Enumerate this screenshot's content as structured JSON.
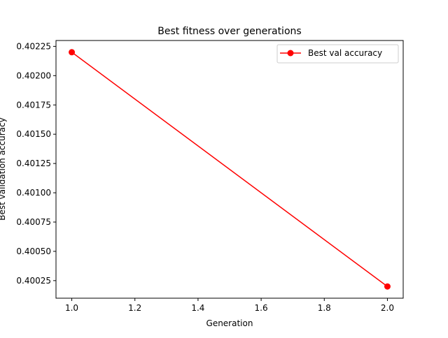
{
  "chart_data": {
    "type": "line",
    "title": "Best fitness over generations",
    "xlabel": "Generation",
    "ylabel": "Best validation accuracy",
    "xlim": [
      0.95,
      2.05
    ],
    "ylim": [
      0.4001,
      0.4023
    ],
    "x_ticks": [
      1.0,
      1.2,
      1.4,
      1.6,
      1.8,
      2.0
    ],
    "x_tick_labels": [
      "1.0",
      "1.2",
      "1.4",
      "1.6",
      "1.8",
      "2.0"
    ],
    "y_ticks": [
      0.40025,
      0.4005,
      0.40075,
      0.401,
      0.40125,
      0.4015,
      0.40175,
      0.402,
      0.40225
    ],
    "y_tick_labels": [
      "0.40025",
      "0.40050",
      "0.40075",
      "0.40100",
      "0.40125",
      "0.40150",
      "0.40175",
      "0.40200",
      "0.40225"
    ],
    "grid": false,
    "legend_position": "top-right",
    "series": [
      {
        "name": "Best val accuracy",
        "color": "#ff0000",
        "marker": "circle",
        "x": [
          1.0,
          2.0
        ],
        "y": [
          0.4022,
          0.4002
        ]
      }
    ]
  }
}
